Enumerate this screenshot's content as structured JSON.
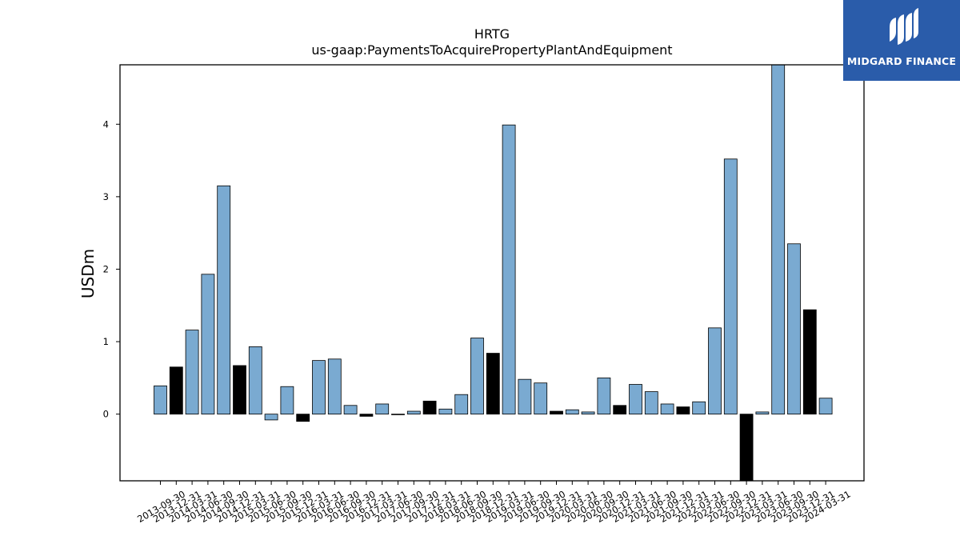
{
  "chart_data": {
    "type": "bar",
    "title": "HRTG",
    "subtitle": "us-gaap:PaymentsToAcquirePropertyPlantAndEquipment",
    "xlabel": "",
    "ylabel": "USDm",
    "ylim": [
      -0.92,
      4.82
    ],
    "yticks": [
      "0",
      "1",
      "2",
      "3",
      "4"
    ],
    "colors": {
      "quarter": "#7aaad1",
      "year_end": "#000000",
      "edge": "#000000"
    },
    "categories": [
      "2013-09-30",
      "2013-12-31",
      "2014-03-31",
      "2014-06-30",
      "2014-09-30",
      "2014-12-31",
      "2015-03-31",
      "2015-06-30",
      "2015-09-30",
      "2015-12-31",
      "2016-03-31",
      "2016-06-30",
      "2016-09-30",
      "2016-12-31",
      "2017-03-31",
      "2017-06-30",
      "2017-09-30",
      "2017-12-31",
      "2018-03-31",
      "2018-06-30",
      "2018-09-30",
      "2018-12-31",
      "2019-03-31",
      "2019-06-30",
      "2019-09-30",
      "2019-12-31",
      "2020-03-31",
      "2020-06-30",
      "2020-09-30",
      "2020-12-31",
      "2021-03-31",
      "2021-06-30",
      "2021-09-30",
      "2021-12-31",
      "2022-03-31",
      "2022-06-30",
      "2022-09-30",
      "2022-12-31",
      "2023-03-31",
      "2023-06-30",
      "2023-09-30",
      "2023-12-31",
      "2024-03-31"
    ],
    "values": [
      0.39,
      0.65,
      1.16,
      1.93,
      3.15,
      0.67,
      0.93,
      -0.08,
      0.38,
      -0.1,
      0.74,
      0.76,
      0.12,
      -0.03,
      0.14,
      0.0,
      0.04,
      0.18,
      0.07,
      0.27,
      1.05,
      0.84,
      3.99,
      0.48,
      0.43,
      0.04,
      0.06,
      0.03,
      0.5,
      0.12,
      0.41,
      0.31,
      0.14,
      0.1,
      0.17,
      1.19,
      3.52,
      -0.92,
      0.03,
      4.82,
      2.35,
      1.44,
      0.22
    ],
    "year_end": [
      false,
      true,
      false,
      false,
      false,
      true,
      false,
      false,
      false,
      true,
      false,
      false,
      false,
      true,
      false,
      false,
      false,
      true,
      false,
      false,
      false,
      true,
      false,
      false,
      false,
      true,
      false,
      false,
      false,
      true,
      false,
      false,
      false,
      true,
      false,
      false,
      false,
      true,
      false,
      false,
      false,
      true,
      false
    ]
  },
  "logo": {
    "text": "MIDGARD FINANCE",
    "icon": "midgard-logo-icon"
  }
}
